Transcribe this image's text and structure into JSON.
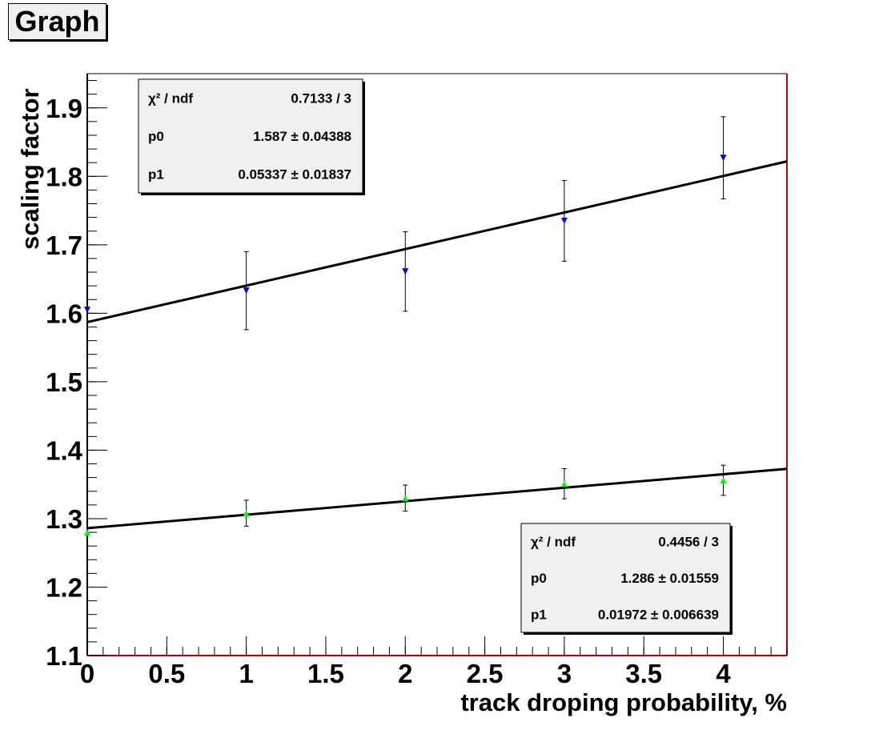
{
  "title": "Graph",
  "chart_data": {
    "type": "scatter",
    "xlabel": "track droping probability, %",
    "ylabel": "scaling factor",
    "xlim": [
      0,
      4.4
    ],
    "ylim": [
      1.1,
      1.95
    ],
    "xticks": [
      "0",
      "0.5",
      "1",
      "1.5",
      "2",
      "2.5",
      "3",
      "3.5",
      "4"
    ],
    "yticks": [
      "1.1",
      "1.2",
      "1.3",
      "1.4",
      "1.5",
      "1.6",
      "1.7",
      "1.8",
      "1.9"
    ],
    "grid": false,
    "series": [
      {
        "marker": "down-triangle",
        "color": "#0000ff",
        "x": [
          0,
          1,
          2,
          3,
          4
        ],
        "y": [
          1.605,
          1.633,
          1.661,
          1.735,
          1.827
        ],
        "yerr": [
          0,
          0.057,
          0.058,
          0.059,
          0.06
        ],
        "fit": {
          "p0": 1.587,
          "p1": 0.05337
        },
        "stats": [
          {
            "name": "χ² / ndf",
            "value": "0.7133 / 3"
          },
          {
            "name": "p0",
            "value": "1.587 ± 0.04388"
          },
          {
            "name": "p1",
            "value": "0.05337 ± 0.01837"
          }
        ],
        "stats_position": "top-left"
      },
      {
        "marker": "up-triangle",
        "color": "#00ff00",
        "x": [
          0,
          1,
          2,
          3,
          4
        ],
        "y": [
          1.28,
          1.308,
          1.33,
          1.351,
          1.356
        ],
        "yerr": [
          0,
          0.019,
          0.019,
          0.022,
          0.022
        ],
        "fit": {
          "p0": 1.286,
          "p1": 0.01972
        },
        "stats": [
          {
            "name": "χ² / ndf",
            "value": "0.4456 / 3"
          },
          {
            "name": "p0",
            "value": "1.286 ± 0.01559"
          },
          {
            "name": "p1",
            "value": "0.01972 ± 0.006639"
          }
        ],
        "stats_position": "bottom-right"
      }
    ]
  }
}
